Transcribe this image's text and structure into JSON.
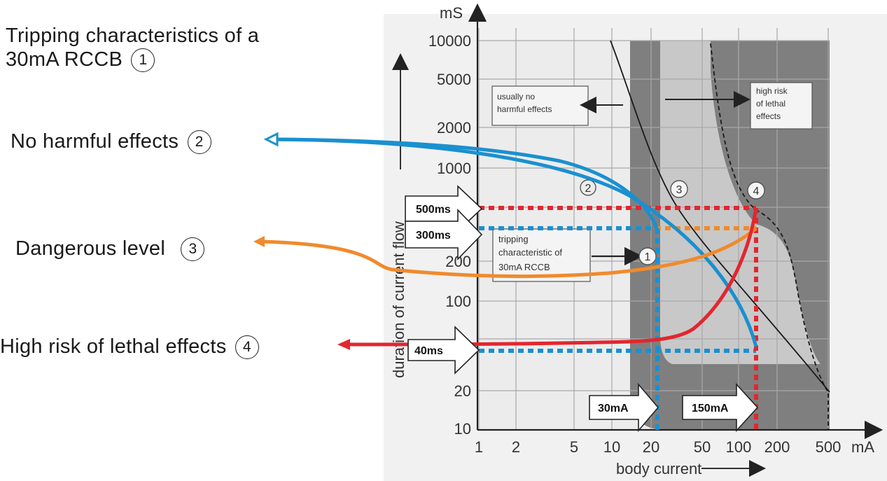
{
  "annotations": {
    "title_line1": "Tripping characteristics of a",
    "title_line2": "30mA RCCB",
    "title_num": "1",
    "no_harm": "No harmful effects",
    "no_harm_num": "2",
    "dangerous": "Dangerous level",
    "dangerous_num": "3",
    "lethal": "High risk of lethal effects",
    "lethal_num": "4"
  },
  "chart_labels": {
    "y_unit": "mS",
    "x_unit": "mA",
    "ylabel": "duration of current flow",
    "xlabel": "body current",
    "y_ticks": [
      "10000",
      "5000",
      "2000",
      "1000",
      "200",
      "100",
      "20",
      "10"
    ],
    "x_ticks": [
      "1",
      "2",
      "5",
      "10",
      "20",
      "50",
      "100",
      "200",
      "500"
    ],
    "box_no_harm": [
      "usually no",
      "harmful effects"
    ],
    "box_high_risk": [
      "high risk",
      "of lethal",
      "effects"
    ],
    "box_tripping": [
      "tripping",
      "characteristic of",
      "30mA RCCB"
    ],
    "zone_marks": [
      "2",
      "3",
      "4",
      "1"
    ]
  },
  "arrows": {
    "t500": "500ms",
    "t300": "300ms",
    "t40": "40ms",
    "i30": "30mA",
    "i150": "150mA"
  },
  "colors": {
    "blue": "#1a90d0",
    "orange": "#f08a2c",
    "red": "#e2262e",
    "zone_dark": "#7a7a7a",
    "zone_light": "#c4c4c4",
    "chart_bg": "#f1f1f1"
  }
}
